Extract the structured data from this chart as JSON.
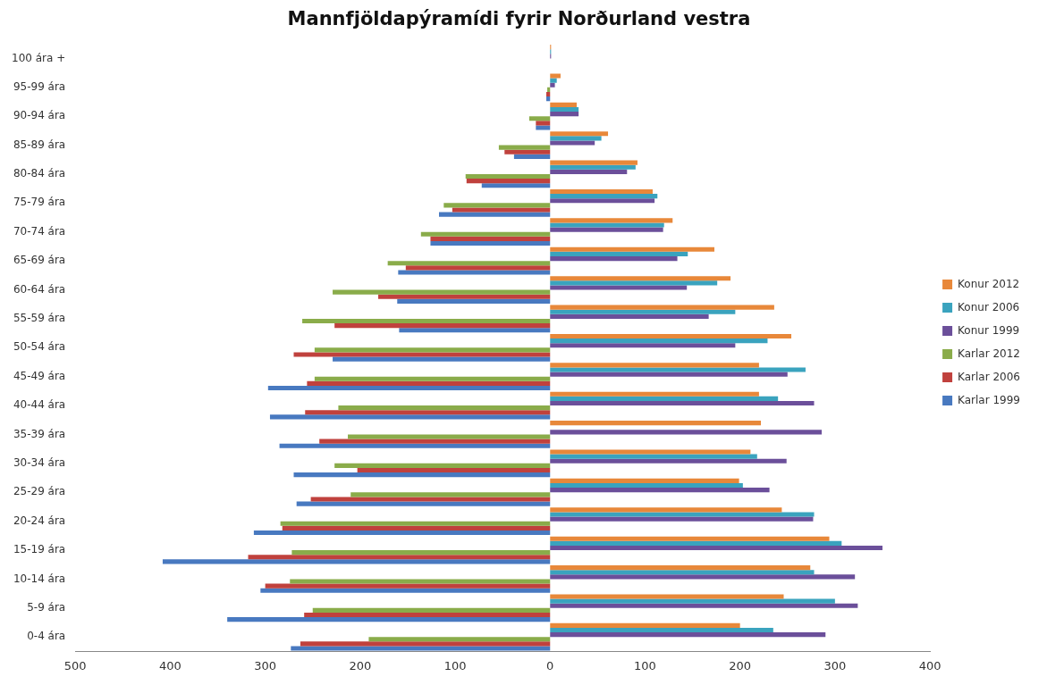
{
  "chart_data": {
    "type": "bar",
    "orientation": "horizontal",
    "title": "Mannfjöldapýramídi fyrir Norðurland vestra",
    "categories": [
      "100 ára +",
      "95-99 ára",
      "90-94 ára",
      "85-89 ára",
      "80-84 ára",
      "75-79 ára",
      "70-74 ára",
      "65-69 ára",
      "60-64 ára",
      "55-59 ára",
      "50-54 ára",
      "45-49 ára",
      "40-44 ára",
      "35-39 ára",
      "30-34 ára",
      "25-29 ára",
      "20-24 ára",
      "15-19 ára",
      "10-14 ára",
      "5-9 ára",
      "0-4 ára"
    ],
    "series": [
      {
        "name": "Konur 2012",
        "color": "#e8883a",
        "values": [
          1,
          11,
          28,
          61,
          92,
          108,
          129,
          173,
          190,
          236,
          254,
          220,
          220,
          222,
          211,
          199,
          244,
          294,
          274,
          246,
          200
        ]
      },
      {
        "name": "Konur 2006",
        "color": "#3aa3be",
        "values": [
          1,
          7,
          30,
          54,
          90,
          113,
          120,
          145,
          176,
          195,
          229,
          269,
          240,
          null,
          218,
          203,
          278,
          307,
          278,
          300,
          235
        ]
      },
      {
        "name": "Konur 1999",
        "color": "#6b4f9a",
        "values": [
          1,
          5,
          30,
          47,
          81,
          110,
          119,
          134,
          144,
          167,
          195,
          250,
          278,
          286,
          249,
          231,
          277,
          350,
          321,
          324,
          290
        ]
      },
      {
        "name": "Karlar 2012",
        "color": "#8aac4a",
        "values": [
          0,
          -3,
          -22,
          -54,
          -89,
          -112,
          -136,
          -171,
          -229,
          -261,
          -248,
          -248,
          -223,
          -213,
          -227,
          -210,
          -284,
          -272,
          -274,
          -250,
          -191
        ]
      },
      {
        "name": "Karlar 2006",
        "color": "#c0413d",
        "values": [
          0,
          -4,
          -15,
          -48,
          -88,
          -103,
          -126,
          -152,
          -181,
          -227,
          -270,
          -256,
          -258,
          -243,
          -203,
          -252,
          -282,
          -318,
          -300,
          -259,
          -263
        ]
      },
      {
        "name": "Karlar 1999",
        "color": "#4879c0",
        "values": [
          0,
          -4,
          -15,
          -38,
          -72,
          -117,
          -126,
          -160,
          -161,
          -159,
          -229,
          -297,
          -295,
          -285,
          -270,
          -267,
          -312,
          -408,
          -305,
          -340,
          -273
        ]
      }
    ],
    "xlim": [
      -500,
      400
    ],
    "xticks": [
      {
        "value": -500,
        "label": "500"
      },
      {
        "value": -400,
        "label": "400"
      },
      {
        "value": -300,
        "label": "300"
      },
      {
        "value": -200,
        "label": "200"
      },
      {
        "value": -100,
        "label": "100"
      },
      0,
      100,
      200,
      300,
      400
    ],
    "grid": false,
    "legend": "right"
  }
}
